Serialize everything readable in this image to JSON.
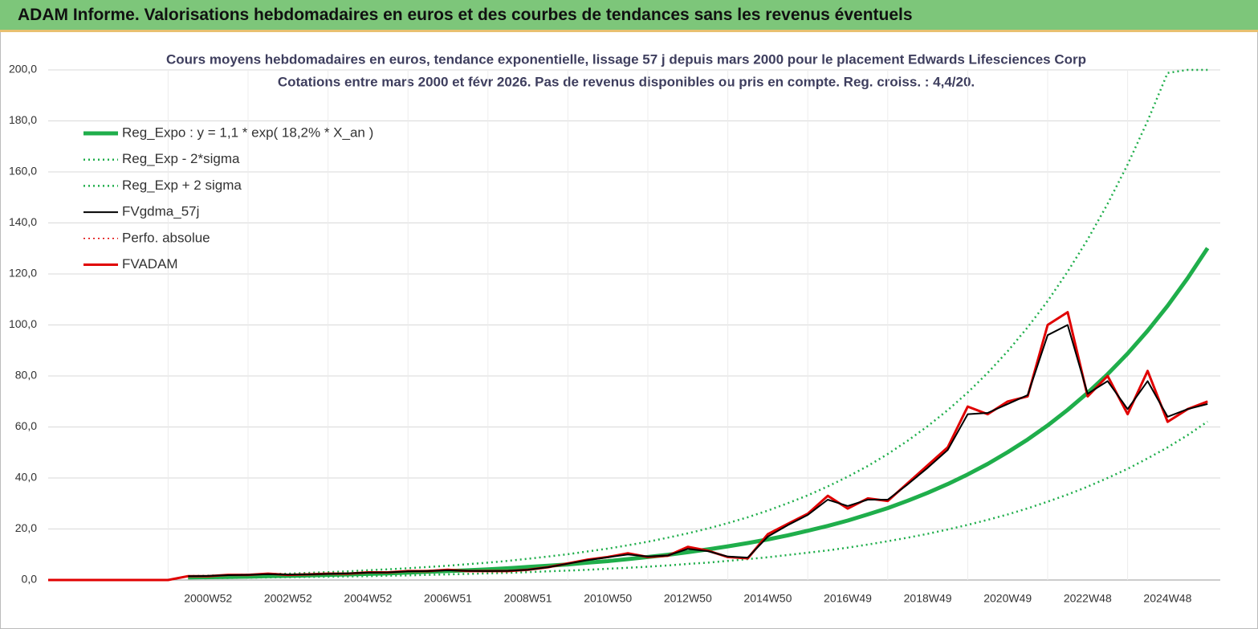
{
  "page_title": "ADAM Informe. Valorisations hebdomadaires en euros et des courbes de tendances sans les revenus éventuels",
  "chart_data": {
    "type": "line",
    "title": "Cours moyens hebdomadaires en euros, tendance exponentielle, lissage 57 j depuis mars 2000 pour le placement Edwards Lifesciences Corp",
    "subtitle": "Cotations entre mars 2000 et févr 2026. Pas de revenus disponibles ou pris en compte. Reg. croiss. : 4,4/20.",
    "categories": [
      null,
      null,
      null,
      null,
      null,
      null,
      null,
      null,
      "2000W52",
      null,
      null,
      null,
      "2002W52",
      null,
      null,
      null,
      "2004W52",
      null,
      null,
      null,
      "2006W51",
      null,
      null,
      null,
      "2008W51",
      null,
      null,
      null,
      "2010W50",
      null,
      null,
      null,
      "2012W50",
      null,
      null,
      null,
      "2014W50",
      null,
      null,
      null,
      "2016W49",
      null,
      null,
      null,
      "2018W49",
      null,
      null,
      null,
      "2020W49",
      null,
      null,
      null,
      "2022W48",
      null,
      null,
      null,
      "2024W48",
      null,
      null
    ],
    "ylim": [
      0,
      200
    ],
    "yticks": [
      {
        "value": 0,
        "label": "0,0"
      },
      {
        "value": 20,
        "label": "20,0"
      },
      {
        "value": 40,
        "label": "40,0"
      },
      {
        "value": 60,
        "label": "60,0"
      },
      {
        "value": 80,
        "label": "80,0"
      },
      {
        "value": 100,
        "label": "100,0"
      },
      {
        "value": 120,
        "label": "120,0"
      },
      {
        "value": 140,
        "label": "140,0"
      },
      {
        "value": 160,
        "label": "160,0"
      },
      {
        "value": 180,
        "label": "180,0"
      },
      {
        "value": 200,
        "label": "200,0"
      }
    ],
    "grid": true,
    "legend": "upper left",
    "series": [
      {
        "name": "Reg_Expo : y = 1,1 * exp( 18,2% *  X_an )",
        "color": "#1fae4b",
        "style": "solid",
        "width": 5,
        "values": [
          null,
          null,
          null,
          null,
          null,
          null,
          null,
          1.0,
          1.1,
          1.2,
          1.3,
          1.5,
          1.6,
          1.8,
          2.0,
          2.2,
          2.4,
          2.6,
          2.9,
          3.2,
          3.5,
          3.8,
          4.2,
          4.6,
          5.1,
          5.6,
          6.1,
          6.8,
          7.4,
          8.2,
          9.0,
          9.9,
          10.9,
          12.0,
          13.2,
          14.5,
          15.9,
          17.5,
          19.3,
          21.2,
          23.3,
          25.7,
          28.2,
          31.1,
          34.2,
          37.6,
          41.4,
          45.5,
          50.1,
          55.1,
          60.6,
          66.7,
          73.4,
          80.7,
          88.8,
          97.7,
          107.5,
          118.3,
          130.1
        ]
      },
      {
        "name": "Reg_Exp - 2*sigma",
        "color": "#1fae4b",
        "style": "dotted",
        "width": 2.5,
        "values": [
          null,
          null,
          null,
          null,
          null,
          null,
          null,
          0.7,
          0.8,
          0.8,
          0.9,
          1.0,
          1.1,
          1.2,
          1.3,
          1.4,
          1.5,
          1.7,
          1.8,
          2.0,
          2.2,
          2.4,
          2.6,
          2.8,
          3.1,
          3.4,
          3.7,
          4.0,
          4.4,
          4.8,
          5.2,
          5.7,
          6.3,
          6.8,
          7.5,
          8.2,
          8.9,
          9.8,
          10.7,
          11.6,
          12.7,
          13.9,
          15.2,
          16.6,
          18.1,
          19.8,
          21.6,
          23.6,
          25.7,
          28.1,
          30.7,
          33.5,
          36.6,
          40.0,
          43.6,
          47.7,
          52.0,
          56.8,
          62.1
        ]
      },
      {
        "name": "Reg_Exp + 2 sigma",
        "color": "#1fae4b",
        "style": "dotted",
        "width": 2.5,
        "values": [
          null,
          null,
          null,
          null,
          null,
          null,
          null,
          1.5,
          1.7,
          1.9,
          2.1,
          2.3,
          2.5,
          2.8,
          3.1,
          3.4,
          3.8,
          4.2,
          4.6,
          5.1,
          5.6,
          6.2,
          6.8,
          7.5,
          8.3,
          9.2,
          10.1,
          11.2,
          12.3,
          13.6,
          15.0,
          16.6,
          18.3,
          20.2,
          22.3,
          24.6,
          27.2,
          30.1,
          33.2,
          36.7,
          40.5,
          44.7,
          49.4,
          54.6,
          60.3,
          66.6,
          73.5,
          81.2,
          89.7,
          99.1,
          109.4,
          120.9,
          133.5,
          147.5,
          162.9,
          180.0,
          198.8,
          200,
          200
        ]
      },
      {
        "name": "FVgdma_57j",
        "color": "#000000",
        "style": "solid",
        "width": 2,
        "values": [
          null,
          null,
          null,
          null,
          null,
          null,
          null,
          1.5,
          1.6,
          1.9,
          2.0,
          2.3,
          2.1,
          2.2,
          2.4,
          2.6,
          2.9,
          3.0,
          3.4,
          3.5,
          3.8,
          3.6,
          3.5,
          3.6,
          4.0,
          5.0,
          6.4,
          7.8,
          8.9,
          10.0,
          9.2,
          9.6,
          12.2,
          11.3,
          9.2,
          8.8,
          17.0,
          21.5,
          25.5,
          31.5,
          29.0,
          31.5,
          31.5,
          37.5,
          44.0,
          51.0,
          65.0,
          65.5,
          69.0,
          72.5,
          96.0,
          100.0,
          73.0,
          78.0,
          67.0,
          78.0,
          64.0,
          67.0,
          69.0
        ]
      },
      {
        "name": "Perfo. absolue",
        "color": "#e00000",
        "style": "dotted",
        "width": 1.5,
        "values": [
          0,
          0,
          0,
          0,
          0,
          0,
          0,
          1.5,
          1.5,
          2.0,
          2.0,
          2.5,
          2.0,
          2.2,
          2.5,
          2.5,
          3.0,
          3.0,
          3.5,
          3.5,
          4.0,
          3.5,
          3.5,
          3.5,
          4.0,
          5.0,
          6.5,
          8.0,
          9.0,
          10.5,
          9.0,
          9.5,
          13.0,
          11.5,
          9.0,
          8.5,
          18.0,
          22.0,
          26.0,
          33.0,
          28.0,
          32.0,
          31.0,
          38.0,
          45.0,
          52.0,
          68.0,
          65.0,
          70.0,
          72.0,
          100.0,
          105.0,
          72.0,
          80.0,
          65.0,
          82.0,
          62.0,
          67.0,
          70.0
        ]
      },
      {
        "name": "FVADAM",
        "color": "#e00000",
        "style": "solid",
        "width": 3,
        "values": [
          0,
          0,
          0,
          0,
          0,
          0,
          0,
          1.5,
          1.5,
          2.0,
          2.0,
          2.5,
          2.0,
          2.2,
          2.5,
          2.5,
          3.0,
          3.0,
          3.5,
          3.5,
          4.0,
          3.5,
          3.5,
          3.5,
          4.0,
          5.0,
          6.5,
          8.0,
          9.0,
          10.5,
          9.0,
          9.5,
          13.0,
          11.5,
          9.0,
          8.5,
          18.0,
          22.0,
          26.0,
          33.0,
          28.0,
          32.0,
          31.0,
          38.0,
          45.0,
          52.0,
          68.0,
          65.0,
          70.0,
          72.0,
          100.0,
          105.0,
          72.0,
          80.0,
          65.0,
          82.0,
          62.0,
          67.0,
          70.0
        ]
      }
    ]
  }
}
